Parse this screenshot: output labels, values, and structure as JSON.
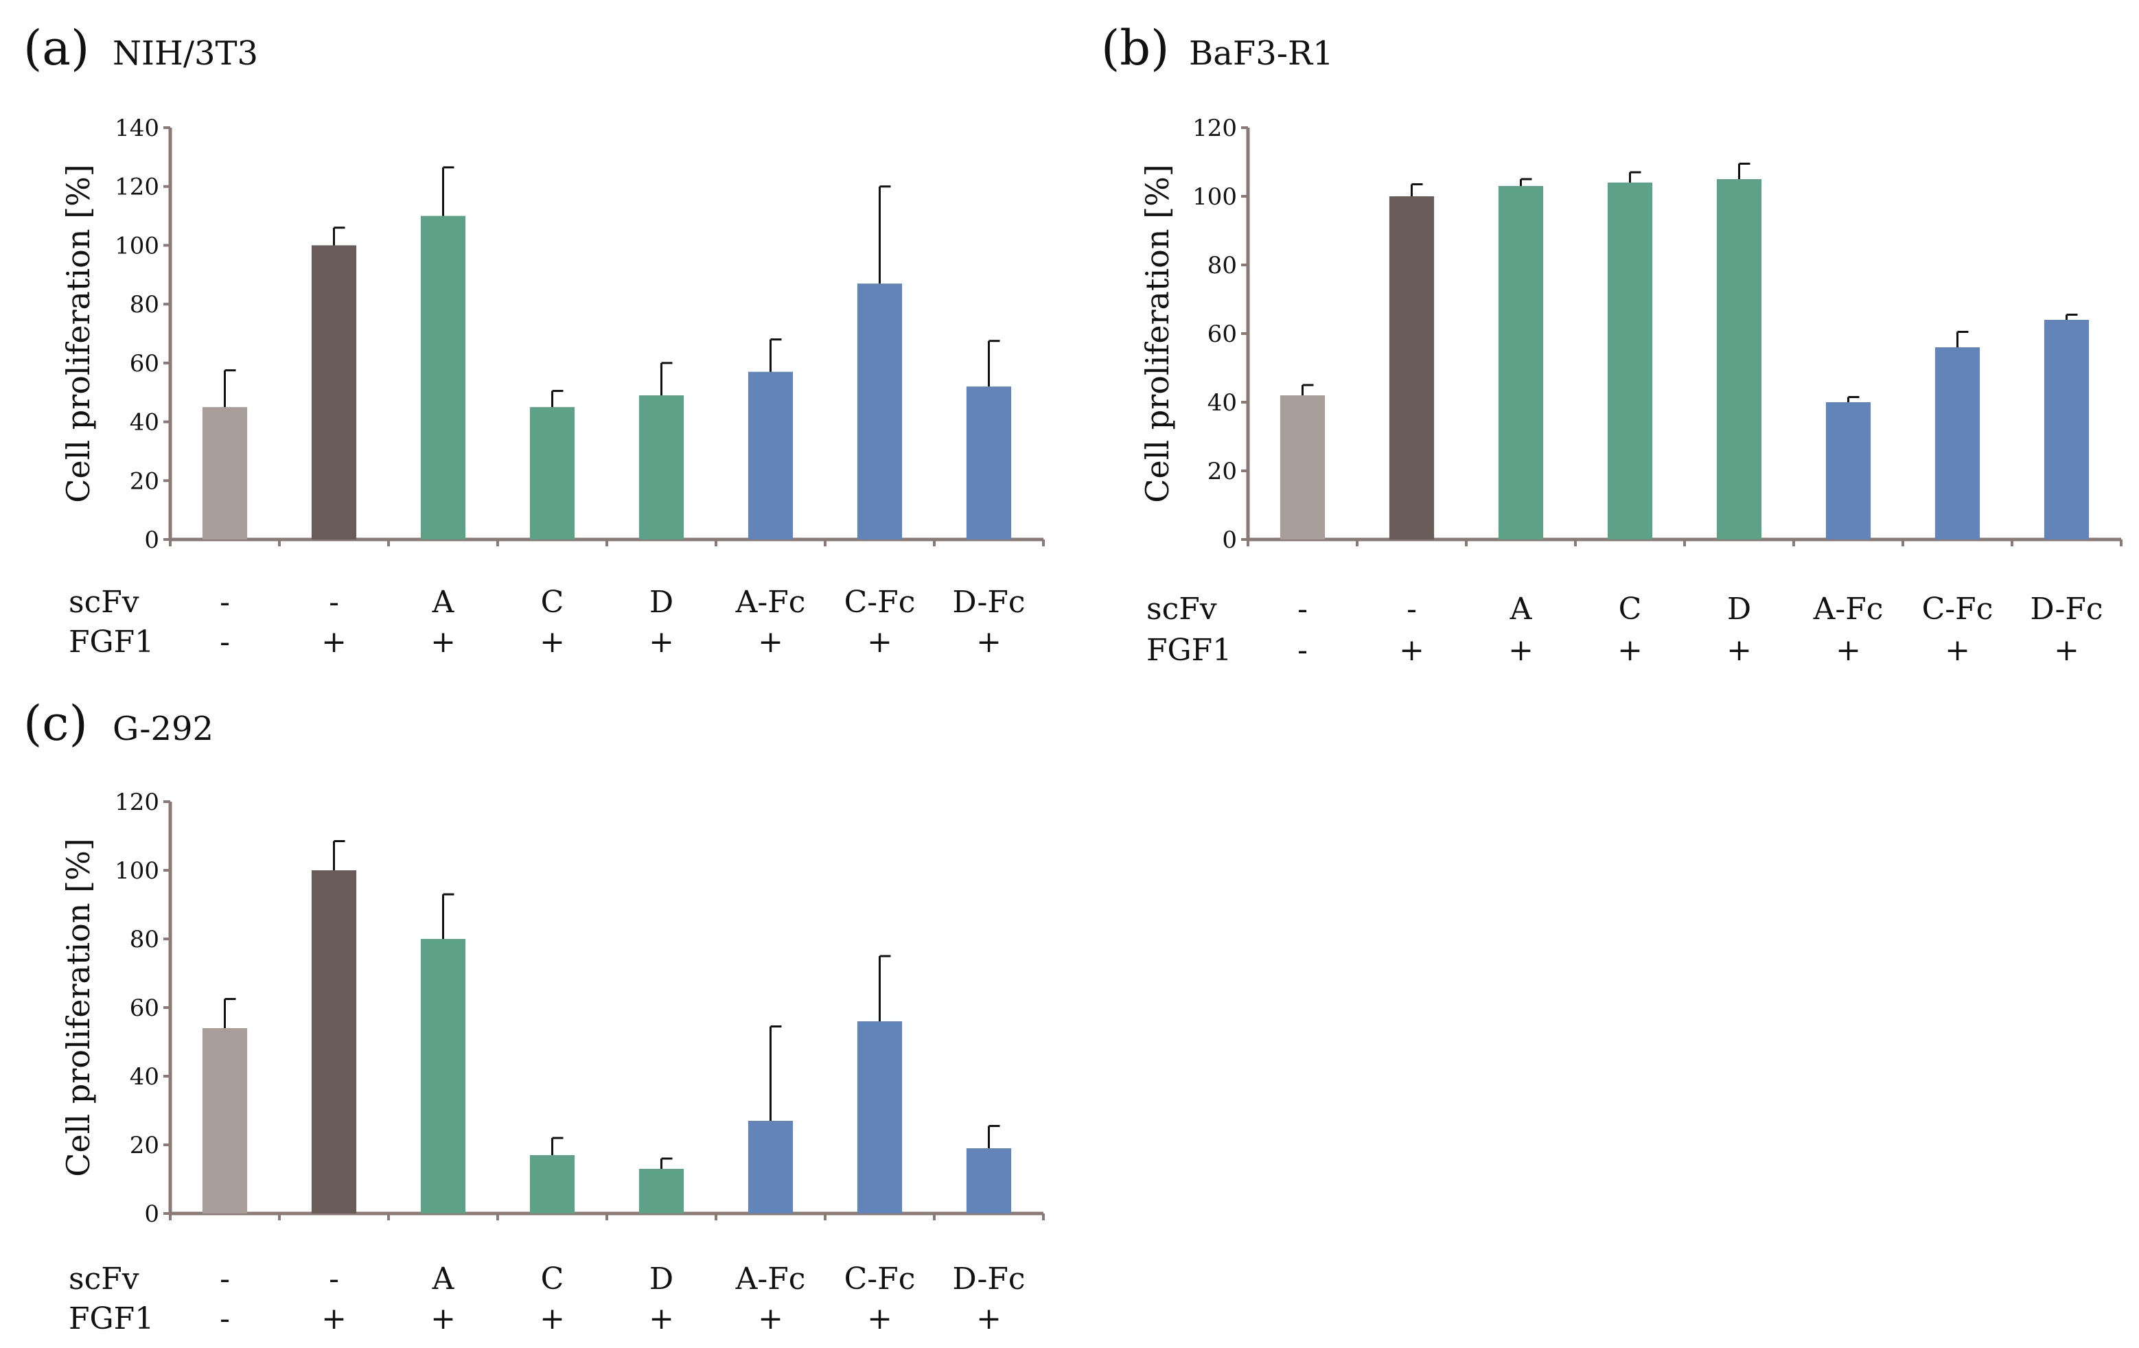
{
  "conditions": {
    "row_labels": [
      "scFv",
      "FGF1"
    ],
    "scFv": [
      "-",
      "-",
      "A",
      "C",
      "D",
      "A-Fc",
      "C-Fc",
      "D-Fc"
    ],
    "FGF1": [
      "-",
      "+",
      "+",
      "+",
      "+",
      "+",
      "+",
      "+"
    ]
  },
  "colors": {
    "control_no_fgf": "#a89d99",
    "control_fgf": "#685b58",
    "scfv": "#5da188",
    "scfv_fc": "#6384b9"
  },
  "chart_data": [
    {
      "type": "bar",
      "panel": "(a)",
      "title": "NIH/3T3",
      "xlabel": "",
      "ylabel": "Cell proliferation  [%]",
      "ylim": [
        0,
        140
      ],
      "yticks": [
        0,
        20,
        40,
        60,
        80,
        100,
        120,
        140
      ],
      "categories": [
        "-/-",
        "-/+",
        "A/+",
        "C/+",
        "D/+",
        "A-Fc/+",
        "C-Fc/+",
        "D-Fc/+"
      ],
      "values": [
        45,
        100,
        110,
        45,
        49,
        57,
        87,
        52
      ],
      "errors": [
        12.5,
        6,
        16.5,
        5.5,
        11,
        11,
        33,
        15.5
      ],
      "bar_colors": [
        "control_no_fgf",
        "control_fgf",
        "scfv",
        "scfv",
        "scfv",
        "scfv_fc",
        "scfv_fc",
        "scfv_fc"
      ]
    },
    {
      "type": "bar",
      "panel": "(b)",
      "title": "BaF3-R1",
      "xlabel": "",
      "ylabel": "Cell proliferation  [%]",
      "ylim": [
        0,
        120
      ],
      "yticks": [
        0,
        20,
        40,
        60,
        80,
        100,
        120
      ],
      "categories": [
        "-/-",
        "-/+",
        "A/+",
        "C/+",
        "D/+",
        "A-Fc/+",
        "C-Fc/+",
        "D-Fc/+"
      ],
      "values": [
        42,
        100,
        103,
        104,
        105,
        40,
        56,
        64
      ],
      "errors": [
        3,
        3.5,
        2,
        3,
        4.5,
        1.5,
        4.5,
        1.5
      ],
      "bar_colors": [
        "control_no_fgf",
        "control_fgf",
        "scfv",
        "scfv",
        "scfv",
        "scfv_fc",
        "scfv_fc",
        "scfv_fc"
      ]
    },
    {
      "type": "bar",
      "panel": "(c)",
      "title": "G-292",
      "xlabel": "",
      "ylabel": "Cell proliferation  [%]",
      "ylim": [
        0,
        120
      ],
      "yticks": [
        0,
        20,
        40,
        60,
        80,
        100,
        120
      ],
      "categories": [
        "-/-",
        "-/+",
        "A/+",
        "C/+",
        "D/+",
        "A-Fc/+",
        "C-Fc/+",
        "D-Fc/+"
      ],
      "values": [
        54,
        100,
        80,
        17,
        13,
        27,
        56,
        19
      ],
      "errors": [
        8.5,
        8.5,
        13,
        5,
        3,
        27.5,
        19,
        6.5
      ],
      "bar_colors": [
        "control_no_fgf",
        "control_fgf",
        "scfv",
        "scfv",
        "scfv",
        "scfv_fc",
        "scfv_fc",
        "scfv_fc"
      ]
    }
  ]
}
